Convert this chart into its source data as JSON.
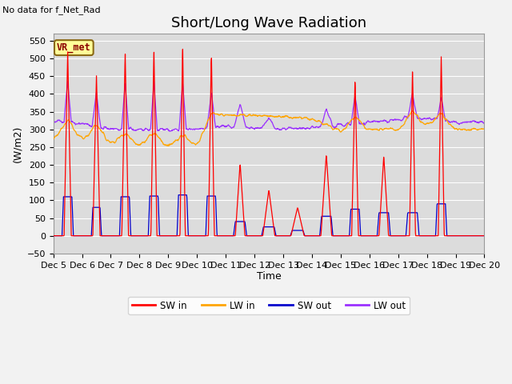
{
  "title": "Short/Long Wave Radiation",
  "subtitle": "No data for f_Net_Rad",
  "ylabel": "(W/m2)",
  "xlabel": "Time",
  "xlim": [
    0,
    360
  ],
  "ylim": [
    -50,
    570
  ],
  "yticks": [
    -50,
    0,
    50,
    100,
    150,
    200,
    250,
    300,
    350,
    400,
    450,
    500,
    550
  ],
  "xtick_labels": [
    "Dec 5",
    "Dec 6",
    "Dec 7",
    "Dec 8",
    "Dec 9",
    "Dec 10",
    "Dec 11",
    "Dec 12",
    "Dec 13",
    "Dec 14",
    "Dec 15",
    "Dec 16",
    "Dec 17",
    "Dec 18",
    "Dec 19",
    "Dec 20"
  ],
  "xtick_positions": [
    0,
    24,
    48,
    72,
    96,
    120,
    144,
    168,
    192,
    216,
    240,
    264,
    288,
    312,
    336,
    360
  ],
  "colors": {
    "SW_in": "#FF0000",
    "LW_in": "#FFA500",
    "SW_out": "#0000CC",
    "LW_out": "#9B30FF"
  },
  "legend_labels": [
    "SW in",
    "LW in",
    "SW out",
    "LW out"
  ],
  "station_label": "VR_met",
  "background_color": "#DCDCDC",
  "grid_color": "#FFFFFF",
  "title_fontsize": 13,
  "label_fontsize": 9
}
